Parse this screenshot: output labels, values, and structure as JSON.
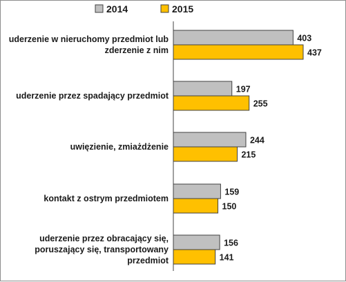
{
  "chart_data": {
    "type": "bar",
    "orientation": "horizontal",
    "categories": [
      [
        "uderzenie w nieruchomy przedmiot lub",
        "zderzenie z nim"
      ],
      [
        "uderzenie przez spadający przedmiot"
      ],
      [
        "uwięzienie, zmiażdżenie"
      ],
      [
        "kontakt z ostrym przedmiotem"
      ],
      [
        "uderzenie przez obracający się,",
        "poruszający się, transportowany",
        "przedmiot"
      ]
    ],
    "series": [
      {
        "name": "2014",
        "color": "#c0c0c0",
        "values": [
          403,
          197,
          244,
          159,
          156
        ]
      },
      {
        "name": "2015",
        "color": "#ffc000",
        "values": [
          437,
          255,
          215,
          150,
          141
        ]
      }
    ],
    "legend_position": "top",
    "grid": false,
    "xlim": [
      0,
      437
    ]
  }
}
